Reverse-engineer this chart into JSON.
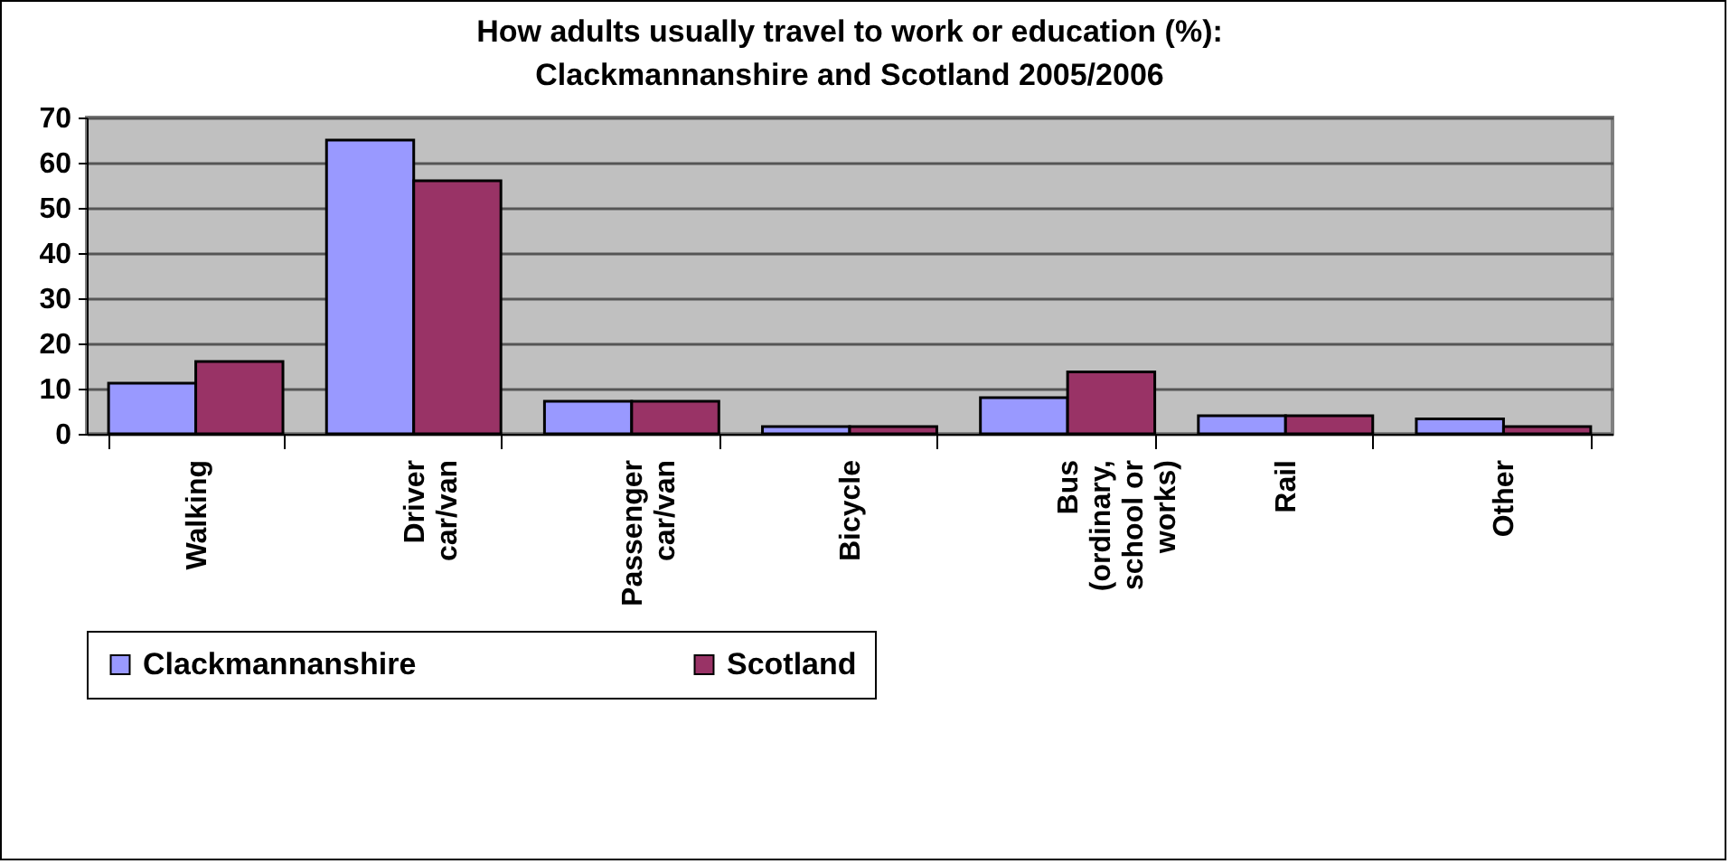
{
  "chart_data": {
    "type": "bar",
    "title": "How adults usually travel to work or education (%): Clackmannanshire and Scotland 2005/2006",
    "categories": [
      "Walking",
      "Driver car/van",
      "Passenger car/van",
      "Bicycle",
      "Bus (ordinary, school or works)",
      "Rail",
      "Other"
    ],
    "series": [
      {
        "name": "Clackmannanshire",
        "color": "#9999ff",
        "values": [
          11.2,
          65,
          7.2,
          1.6,
          8,
          4,
          3.3
        ]
      },
      {
        "name": "Scotland",
        "color": "#993366",
        "values": [
          16,
          56,
          7.2,
          1.6,
          13.7,
          4,
          1.6
        ]
      }
    ],
    "ylim": [
      0,
      70
    ],
    "yticks": [
      0,
      10,
      20,
      30,
      40,
      50,
      60,
      70
    ],
    "grid": "y",
    "legend": "bottom"
  }
}
